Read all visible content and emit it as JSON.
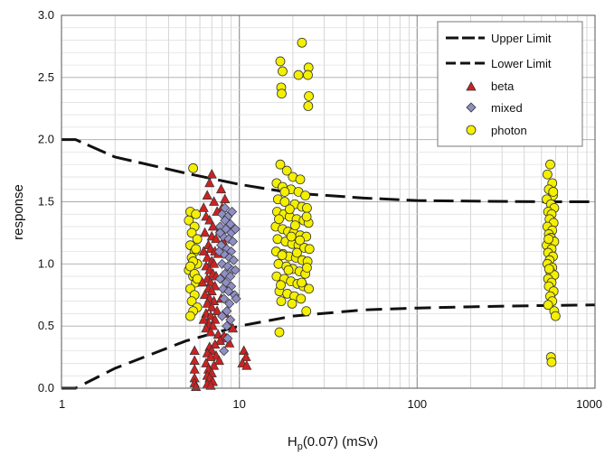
{
  "chart_data": {
    "type": "scatter",
    "xlabel": {
      "main": "H",
      "sub": "p",
      "rest": "(0.07) (mSv)"
    },
    "ylabel": "response",
    "xscale": "log",
    "xlim": [
      1,
      1000
    ],
    "ylim": [
      0,
      3
    ],
    "x_ticks": [
      1,
      10,
      100,
      1000
    ],
    "x_tick_labels": [
      "1",
      "10",
      "100",
      "1000"
    ],
    "y_ticks": [
      0,
      0.5,
      1,
      1.5,
      2,
      2.5,
      3
    ],
    "y_tick_labels": [
      "0.0",
      "0.5",
      "1.0",
      "1.5",
      "2.0",
      "2.5",
      "3.0"
    ],
    "grid": true,
    "legend_position": "top-right",
    "colors": {
      "beta": "#cc2222",
      "mixed": "#8f8fc4",
      "photon": "#f4f000",
      "marker_edge": "#333333",
      "grid": "#cccccc",
      "limit_line": "#111111"
    },
    "limits": [
      {
        "name": "Upper Limit",
        "style": "dashed-long",
        "x": [
          1,
          1.2,
          2,
          5,
          10,
          20,
          50,
          100,
          200,
          500,
          1000
        ],
        "y": [
          2.0,
          2.0,
          1.86,
          1.73,
          1.64,
          1.57,
          1.53,
          1.51,
          1.505,
          1.5,
          1.5
        ]
      },
      {
        "name": "Lower Limit",
        "style": "dashed",
        "x": [
          1,
          1.2,
          2,
          5,
          10,
          20,
          50,
          100,
          200,
          500,
          1000
        ],
        "y": [
          0.0,
          0.0,
          0.16,
          0.38,
          0.5,
          0.58,
          0.63,
          0.645,
          0.655,
          0.665,
          0.67
        ]
      }
    ],
    "series": [
      {
        "name": "beta",
        "marker": "triangle",
        "points": [
          [
            6.8,
            1.65
          ],
          [
            7.0,
            1.72
          ],
          [
            6.6,
            1.55
          ],
          [
            7.2,
            1.5
          ],
          [
            8.0,
            1.45
          ],
          [
            7.5,
            1.42
          ],
          [
            6.5,
            1.38
          ],
          [
            6.8,
            1.35
          ],
          [
            7.1,
            1.3
          ],
          [
            7.8,
            1.28
          ],
          [
            6.4,
            1.25
          ],
          [
            7.0,
            1.22
          ],
          [
            7.4,
            1.2
          ],
          [
            8.1,
            1.18
          ],
          [
            6.7,
            1.15
          ],
          [
            6.9,
            1.12
          ],
          [
            7.3,
            1.1
          ],
          [
            7.6,
            1.08
          ],
          [
            6.6,
            1.05
          ],
          [
            7.0,
            1.02
          ],
          [
            7.2,
            1.0
          ],
          [
            6.5,
            0.98
          ],
          [
            6.8,
            0.95
          ],
          [
            7.1,
            0.92
          ],
          [
            7.4,
            0.9
          ],
          [
            6.6,
            0.88
          ],
          [
            6.9,
            0.85
          ],
          [
            7.3,
            0.82
          ],
          [
            6.7,
            0.8
          ],
          [
            7.0,
            0.78
          ],
          [
            6.4,
            0.75
          ],
          [
            6.8,
            0.72
          ],
          [
            7.2,
            0.7
          ],
          [
            6.6,
            0.68
          ],
          [
            7.0,
            0.65
          ],
          [
            7.5,
            0.62
          ],
          [
            6.5,
            0.6
          ],
          [
            6.9,
            0.58
          ],
          [
            7.3,
            0.55
          ],
          [
            6.7,
            0.52
          ],
          [
            7.1,
            0.5
          ],
          [
            6.5,
            0.48
          ],
          [
            6.9,
            0.45
          ],
          [
            7.6,
            0.43
          ],
          [
            8.2,
            0.42
          ],
          [
            8.5,
            0.4
          ],
          [
            7.8,
            0.38
          ],
          [
            8.8,
            0.36
          ],
          [
            7.3,
            0.35
          ],
          [
            6.8,
            0.33
          ],
          [
            7.0,
            0.3
          ],
          [
            6.6,
            0.28
          ],
          [
            7.4,
            0.26
          ],
          [
            6.9,
            0.25
          ],
          [
            7.7,
            0.22
          ],
          [
            6.5,
            0.2
          ],
          [
            7.2,
            0.18
          ],
          [
            6.7,
            0.15
          ],
          [
            7.0,
            0.12
          ],
          [
            6.6,
            0.1
          ],
          [
            6.8,
            0.08
          ],
          [
            7.1,
            0.05
          ],
          [
            6.6,
            0.03
          ],
          [
            6.9,
            0.02
          ],
          [
            5.6,
            0.3
          ],
          [
            5.6,
            0.22
          ],
          [
            5.6,
            0.15
          ],
          [
            5.6,
            0.08
          ],
          [
            5.6,
            0.04
          ],
          [
            5.7,
            0.01
          ],
          [
            10.6,
            0.3
          ],
          [
            10.9,
            0.25
          ],
          [
            10.4,
            0.2
          ],
          [
            11.0,
            0.18
          ],
          [
            8.3,
            0.6
          ],
          [
            8.7,
            0.52
          ],
          [
            9.2,
            0.48
          ],
          [
            7.9,
            0.72
          ],
          [
            8.4,
            0.8
          ],
          [
            6.3,
            0.55
          ],
          [
            6.2,
            0.85
          ],
          [
            6.3,
            1.1
          ],
          [
            7.9,
            1.6
          ],
          [
            8.3,
            1.52
          ],
          [
            6.3,
            1.45
          ]
        ]
      },
      {
        "name": "mixed",
        "marker": "diamond",
        "points": [
          [
            8.0,
            1.4
          ],
          [
            8.6,
            1.38
          ],
          [
            9.1,
            1.42
          ],
          [
            8.3,
            1.35
          ],
          [
            8.9,
            1.32
          ],
          [
            7.8,
            1.3
          ],
          [
            8.4,
            1.28
          ],
          [
            9.0,
            1.25
          ],
          [
            8.1,
            1.22
          ],
          [
            8.7,
            1.2
          ],
          [
            9.2,
            1.18
          ],
          [
            7.9,
            1.15
          ],
          [
            8.5,
            1.12
          ],
          [
            9.0,
            1.1
          ],
          [
            8.2,
            1.08
          ],
          [
            8.8,
            1.05
          ],
          [
            9.3,
            1.03
          ],
          [
            8.0,
            1.0
          ],
          [
            8.6,
            0.98
          ],
          [
            9.1,
            0.95
          ],
          [
            8.3,
            0.92
          ],
          [
            8.9,
            0.9
          ],
          [
            7.8,
            0.88
          ],
          [
            8.4,
            0.85
          ],
          [
            9.0,
            0.82
          ],
          [
            8.1,
            0.8
          ],
          [
            8.7,
            0.78
          ],
          [
            9.4,
            0.75
          ],
          [
            8.2,
            0.72
          ],
          [
            8.8,
            0.68
          ],
          [
            8.5,
            0.62
          ],
          [
            8.0,
            0.58
          ],
          [
            9.6,
            0.72
          ],
          [
            9.5,
            0.95
          ],
          [
            7.7,
            1.1
          ],
          [
            8.3,
            1.45
          ],
          [
            8.9,
            0.55
          ],
          [
            8.6,
            0.4
          ],
          [
            8.2,
            0.3
          ],
          [
            9.5,
            1.28
          ],
          [
            7.8,
            1.25
          ],
          [
            8.5,
            0.5
          ]
        ]
      },
      {
        "name": "photon",
        "marker": "circle",
        "points": [
          [
            5.5,
            1.77
          ],
          [
            5.3,
            1.42
          ],
          [
            5.7,
            1.4
          ],
          [
            5.2,
            1.35
          ],
          [
            5.6,
            1.3
          ],
          [
            5.4,
            1.25
          ],
          [
            5.8,
            1.2
          ],
          [
            5.3,
            1.15
          ],
          [
            5.6,
            1.1
          ],
          [
            5.4,
            1.05
          ],
          [
            5.8,
            1.0
          ],
          [
            5.2,
            0.95
          ],
          [
            5.5,
            0.9
          ],
          [
            5.7,
            0.85
          ],
          [
            5.3,
            0.8
          ],
          [
            5.6,
            0.75
          ],
          [
            5.4,
            0.7
          ],
          [
            5.8,
            0.65
          ],
          [
            5.5,
            0.62
          ],
          [
            5.3,
            0.58
          ],
          [
            5.7,
            1.12
          ],
          [
            5.5,
            1.02
          ],
          [
            5.3,
            0.98
          ],
          [
            5.6,
            0.92
          ],
          [
            5.8,
            0.88
          ],
          [
            17.0,
            2.63
          ],
          [
            22.5,
            2.78
          ],
          [
            24.5,
            2.58
          ],
          [
            17.5,
            2.55
          ],
          [
            24.3,
            2.52
          ],
          [
            21.5,
            2.52
          ],
          [
            17.2,
            2.42
          ],
          [
            17.3,
            2.37
          ],
          [
            24.6,
            2.35
          ],
          [
            24.4,
            2.27
          ],
          [
            17.0,
            1.8
          ],
          [
            18.5,
            1.75
          ],
          [
            20.0,
            1.7
          ],
          [
            22.0,
            1.68
          ],
          [
            16.2,
            1.65
          ],
          [
            17.5,
            1.62
          ],
          [
            19.5,
            1.6
          ],
          [
            21.5,
            1.58
          ],
          [
            23.5,
            1.55
          ],
          [
            16.5,
            1.52
          ],
          [
            18.0,
            1.5
          ],
          [
            20.5,
            1.48
          ],
          [
            22.5,
            1.46
          ],
          [
            24.0,
            1.45
          ],
          [
            16.3,
            1.42
          ],
          [
            17.8,
            1.4
          ],
          [
            19.2,
            1.38
          ],
          [
            21.0,
            1.36
          ],
          [
            23.0,
            1.35
          ],
          [
            24.5,
            1.33
          ],
          [
            16.0,
            1.3
          ],
          [
            17.5,
            1.28
          ],
          [
            18.8,
            1.26
          ],
          [
            20.2,
            1.25
          ],
          [
            22.0,
            1.23
          ],
          [
            23.8,
            1.22
          ],
          [
            16.4,
            1.2
          ],
          [
            18.2,
            1.18
          ],
          [
            19.8,
            1.16
          ],
          [
            21.5,
            1.15
          ],
          [
            23.2,
            1.13
          ],
          [
            24.8,
            1.12
          ],
          [
            16.1,
            1.1
          ],
          [
            17.6,
            1.08
          ],
          [
            19.0,
            1.06
          ],
          [
            20.8,
            1.05
          ],
          [
            22.6,
            1.03
          ],
          [
            24.2,
            1.02
          ],
          [
            16.6,
            1.0
          ],
          [
            18.4,
            0.98
          ],
          [
            20.0,
            0.96
          ],
          [
            21.8,
            0.94
          ],
          [
            23.5,
            0.92
          ],
          [
            16.2,
            0.9
          ],
          [
            17.9,
            0.88
          ],
          [
            19.5,
            0.86
          ],
          [
            21.2,
            0.84
          ],
          [
            22.9,
            0.82
          ],
          [
            24.6,
            0.8
          ],
          [
            16.8,
            0.78
          ],
          [
            18.6,
            0.76
          ],
          [
            20.4,
            0.74
          ],
          [
            22.2,
            0.72
          ],
          [
            17.2,
            0.7
          ],
          [
            19.8,
            0.68
          ],
          [
            23.8,
            0.62
          ],
          [
            16.8,
            0.45
          ],
          [
            18.0,
            1.58
          ],
          [
            19.2,
            1.44
          ],
          [
            20.6,
            1.31
          ],
          [
            21.9,
            1.19
          ],
          [
            17.4,
            1.07
          ],
          [
            18.9,
            0.95
          ],
          [
            22.4,
            0.85
          ],
          [
            23.9,
            1.38
          ],
          [
            16.7,
            1.36
          ],
          [
            19.6,
            1.22
          ],
          [
            21.1,
            1.09
          ],
          [
            24.0,
            0.97
          ],
          [
            17.1,
            0.83
          ],
          [
            560,
            1.8
          ],
          [
            540,
            1.72
          ],
          [
            575,
            1.65
          ],
          [
            550,
            1.6
          ],
          [
            580,
            1.55
          ],
          [
            535,
            1.52
          ],
          [
            565,
            1.48
          ],
          [
            590,
            1.45
          ],
          [
            545,
            1.42
          ],
          [
            570,
            1.4
          ],
          [
            555,
            1.36
          ],
          [
            585,
            1.33
          ],
          [
            540,
            1.3
          ],
          [
            575,
            1.27
          ],
          [
            550,
            1.24
          ],
          [
            565,
            1.21
          ],
          [
            590,
            1.18
          ],
          [
            535,
            1.15
          ],
          [
            570,
            1.12
          ],
          [
            545,
            1.09
          ],
          [
            580,
            1.06
          ],
          [
            555,
            1.03
          ],
          [
            540,
            1.0
          ],
          [
            575,
            0.97
          ],
          [
            560,
            0.94
          ],
          [
            590,
            0.91
          ],
          [
            545,
            0.88
          ],
          [
            570,
            0.85
          ],
          [
            550,
            0.82
          ],
          [
            585,
            0.78
          ],
          [
            560,
            0.74
          ],
          [
            575,
            0.7
          ],
          [
            545,
            0.67
          ],
          [
            590,
            0.62
          ],
          [
            600,
            0.58
          ],
          [
            565,
            0.25
          ],
          [
            570,
            0.21
          ],
          [
            548,
            1.2
          ],
          [
            582,
            1.58
          ],
          [
            552,
            0.96
          ]
        ]
      }
    ]
  }
}
